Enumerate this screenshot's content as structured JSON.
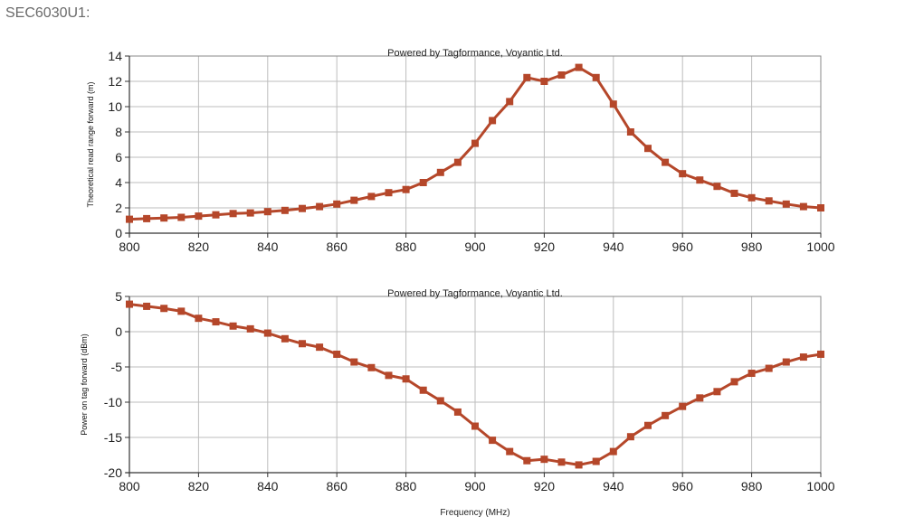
{
  "page": {
    "label": "SEC6030U1:"
  },
  "chart_data": [
    {
      "type": "line",
      "title": "Powered by Tagformance, Voyantic Ltd.",
      "xlabel": "",
      "ylabel": "Theoretical read range forward (m)",
      "xlim": [
        800,
        1000
      ],
      "ylim": [
        0,
        14
      ],
      "grid": true,
      "color": "#b5472a",
      "x_ticks": [
        800,
        820,
        840,
        860,
        880,
        900,
        920,
        940,
        960,
        980,
        1000
      ],
      "x_tick_labels": [
        "800",
        "820",
        "840",
        "860",
        "880",
        "900",
        "920",
        "940",
        "960",
        "980",
        "1000"
      ],
      "y_ticks": [
        0,
        2,
        4,
        6,
        8,
        10,
        12,
        14
      ],
      "y_tick_labels": [
        "0",
        "2",
        "4",
        "6",
        "8",
        "10",
        "12",
        "14"
      ],
      "series": [
        {
          "name": "Theoretical read range forward",
          "x": [
            800,
            805,
            810,
            815,
            820,
            825,
            830,
            835,
            840,
            845,
            850,
            855,
            860,
            865,
            870,
            875,
            880,
            885,
            890,
            895,
            900,
            905,
            910,
            915,
            920,
            925,
            930,
            935,
            940,
            945,
            950,
            955,
            960,
            965,
            970,
            975,
            980,
            985,
            990,
            995,
            1000
          ],
          "y": [
            1.1,
            1.15,
            1.2,
            1.25,
            1.35,
            1.45,
            1.55,
            1.6,
            1.7,
            1.8,
            1.95,
            2.1,
            2.3,
            2.6,
            2.9,
            3.2,
            3.45,
            4.0,
            4.8,
            5.6,
            7.1,
            8.9,
            10.4,
            12.3,
            12.0,
            12.5,
            13.1,
            12.3,
            10.2,
            8.0,
            6.7,
            5.6,
            4.7,
            4.2,
            3.7,
            3.15,
            2.8,
            2.55,
            2.3,
            2.1,
            2.0
          ]
        }
      ]
    },
    {
      "type": "line",
      "title": "Powered by Tagformance, Voyantic Ltd.",
      "xlabel": "Frequency (MHz)",
      "ylabel": "Power on tag forward (dBm)",
      "xlim": [
        800,
        1000
      ],
      "ylim": [
        -20,
        5
      ],
      "grid": true,
      "color": "#b5472a",
      "x_ticks": [
        800,
        820,
        840,
        860,
        880,
        900,
        920,
        940,
        960,
        980,
        1000
      ],
      "x_tick_labels": [
        "800",
        "820",
        "840",
        "860",
        "880",
        "900",
        "920",
        "940",
        "960",
        "980",
        "1000"
      ],
      "y_ticks": [
        5,
        0,
        -5,
        -10,
        -15,
        -20
      ],
      "y_tick_labels": [
        "5",
        "0",
        "-5",
        "-10",
        "-15",
        "-20"
      ],
      "series": [
        {
          "name": "Power on tag forward",
          "x": [
            800,
            805,
            810,
            815,
            820,
            825,
            830,
            835,
            840,
            845,
            850,
            855,
            860,
            865,
            870,
            875,
            880,
            885,
            890,
            895,
            900,
            905,
            910,
            915,
            920,
            925,
            930,
            935,
            940,
            945,
            950,
            955,
            960,
            965,
            970,
            975,
            980,
            985,
            990,
            995,
            1000
          ],
          "y": [
            3.9,
            3.6,
            3.3,
            2.9,
            1.9,
            1.4,
            0.8,
            0.4,
            -0.2,
            -1.0,
            -1.7,
            -2.2,
            -3.2,
            -4.3,
            -5.1,
            -6.2,
            -6.7,
            -8.3,
            -9.8,
            -11.4,
            -13.4,
            -15.4,
            -17.0,
            -18.3,
            -18.1,
            -18.5,
            -18.9,
            -18.4,
            -17.0,
            -14.9,
            -13.3,
            -11.9,
            -10.6,
            -9.4,
            -8.5,
            -7.1,
            -5.9,
            -5.2,
            -4.3,
            -3.6,
            -3.2
          ]
        }
      ]
    }
  ]
}
